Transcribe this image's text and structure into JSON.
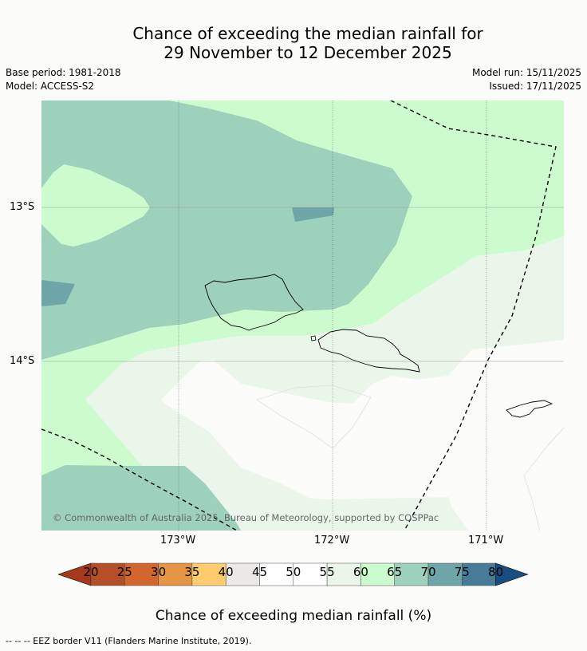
{
  "title_line1": "Chance of exceeding the median rainfall for",
  "title_line2": "29 November to 12 December 2025",
  "base_period": "Base period: 1981-2018",
  "model": "Model: ACCESS-S2",
  "model_run": "Model run: 15/11/2025",
  "issued": "Issued: 17/11/2025",
  "map": {
    "lat_labels": [
      "13°S",
      "14°S"
    ],
    "lon_labels": [
      "173°W",
      "172°W",
      "171°W"
    ],
    "copyright": "© Commonwealth of Australia 2025, Bureau of Meteorology, supported by COSPPac"
  },
  "colorbar": {
    "ticks": [
      "20",
      "25",
      "30",
      "35",
      "40",
      "45",
      "50",
      "55",
      "60",
      "65",
      "70",
      "75",
      "80"
    ],
    "colors": [
      "#a6391d",
      "#b54f29",
      "#d1672f",
      "#e49546",
      "#fecc6e",
      "#ebe9e6",
      "#ffffff",
      "#ffffff",
      "#ebf6eb",
      "#ccfcce",
      "#9ed1bb",
      "#6ea5a8",
      "#467c98",
      "#1a4e83"
    ],
    "label": "Chance of exceeding median rainfall (%)"
  },
  "footnote": "--  --  -- EEZ border V11 (Flanders Marine Institute, 2019)."
}
